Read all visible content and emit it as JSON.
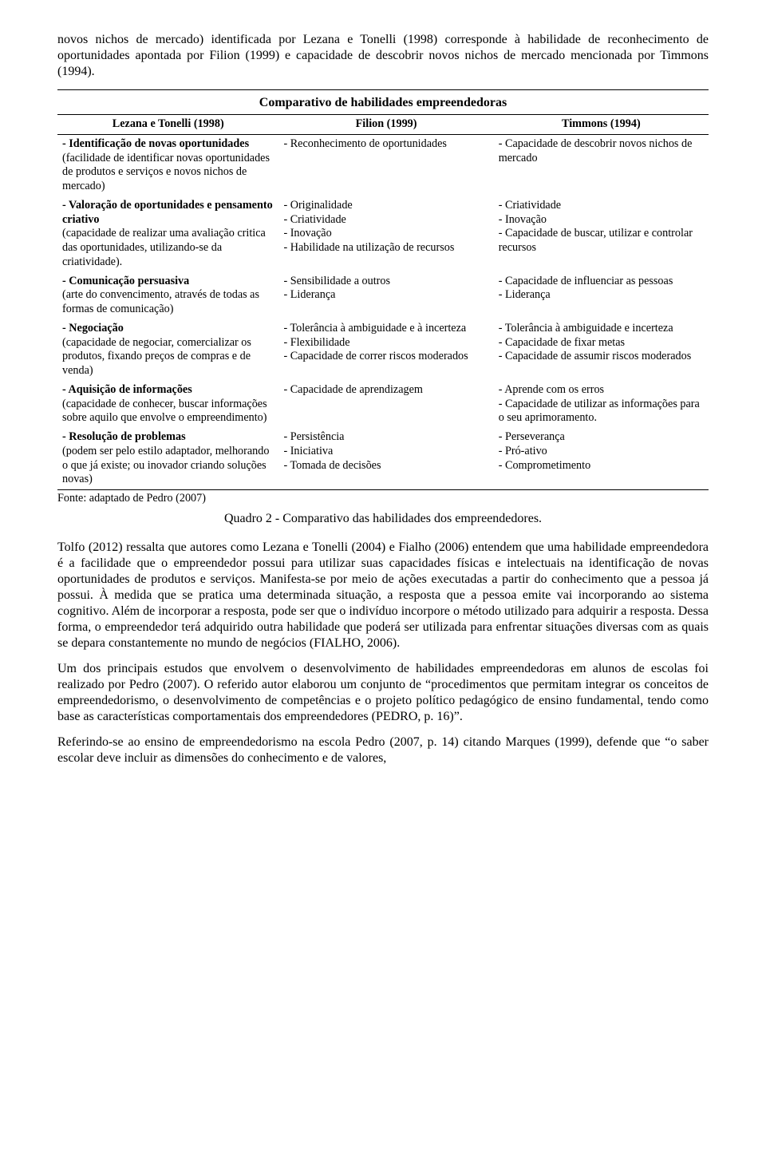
{
  "intro": "novos nichos de mercado) identificada por Lezana e Tonelli (1998) corresponde à habilidade de reconhecimento de oportunidades apontada por Filion (1999) e capacidade de descobrir novos nichos de mercado mencionada por Timmons (1994).",
  "table": {
    "title": "Comparativo de habilidades empreendedoras",
    "headers": [
      "Lezana e Tonelli (1998)",
      "Filion (1999)",
      "Timmons (1994)"
    ],
    "rows": [
      {
        "c1_bold": "- Identificação de novas oportunidades",
        "c1_rest": "(facilidade de identificar novas oportunidades de produtos e serviços e novos nichos de mercado)",
        "c2": "- Reconhecimento de oportunidades",
        "c3": "- Capacidade de descobrir novos nichos de mercado"
      },
      {
        "c1_bold": "- Valoração de oportunidades e pensamento criativo",
        "c1_rest": "(capacidade de realizar uma avaliação critica das oportunidades, utilizando-se da criatividade).",
        "c2": "- Originalidade\n- Criatividade\n- Inovação\n- Habilidade na utilização de recursos",
        "c3": "- Criatividade\n- Inovação\n- Capacidade de buscar, utilizar e controlar recursos"
      },
      {
        "c1_bold": "- Comunicação persuasiva",
        "c1_rest": "(arte do convencimento, através de todas as formas de comunicação)",
        "c2": "- Sensibilidade a outros\n- Liderança",
        "c3": "- Capacidade de influenciar as pessoas\n- Liderança"
      },
      {
        "c1_bold": "- Negociação",
        "c1_rest": "(capacidade de negociar, comercializar os produtos, fixando preços de compras e de venda)",
        "c2": "- Tolerância à ambiguidade e à incerteza\n- Flexibilidade\n- Capacidade de correr riscos moderados",
        "c3": "- Tolerância à ambiguidade e incerteza\n- Capacidade de fixar metas\n- Capacidade de assumir riscos moderados"
      },
      {
        "c1_bold": "- Aquisição de informações",
        "c1_rest": "(capacidade de conhecer, buscar informações sobre aquilo que envolve o empreendimento)",
        "c2": "- Capacidade de aprendizagem",
        "c3": "- Aprende com os erros\n- Capacidade de utilizar as informações para o seu aprimoramento."
      },
      {
        "c1_bold": "- Resolução de problemas",
        "c1_rest": "(podem ser pelo estilo adaptador, melhorando o que já existe; ou inovador criando soluções novas)",
        "c2": "- Persistência\n- Iniciativa\n- Tomada de decisões",
        "c3": "- Perseverança\n- Pró-ativo\n- Comprometimento"
      }
    ],
    "source": "Fonte: adaptado de Pedro (2007)",
    "caption": "Quadro 2 - Comparativo das habilidades dos empreendedores."
  },
  "body_paras": [
    "Tolfo (2012) ressalta que autores como Lezana e Tonelli (2004) e Fialho (2006) entendem que uma habilidade empreendedora é a facilidade que o empreendedor possui para utilizar suas capacidades físicas e intelectuais na identificação de novas oportunidades de produtos e serviços. Manifesta-se por meio de ações executadas a partir do conhecimento que a pessoa já possui. À medida que se pratica uma determinada situação, a resposta que a pessoa emite vai incorporando ao sistema cognitivo. Além de incorporar a resposta, pode ser que o indivíduo incorpore o método utilizado para adquirir a resposta. Dessa forma, o empreendedor terá adquirido outra habilidade que poderá ser utilizada para enfrentar situações diversas com as quais se depara constantemente no mundo de negócios (FIALHO, 2006).",
    "Um dos principais estudos que envolvem o desenvolvimento de habilidades empreendedoras em alunos de escolas foi realizado por Pedro (2007). O referido autor elaborou um conjunto de “procedimentos que permitam integrar os conceitos de empreendedorismo, o desenvolvimento de competências e o projeto político pedagógico de ensino fundamental, tendo como base as características comportamentais dos empreendedores (PEDRO, p. 16)”.",
    "Referindo-se ao ensino de empreendedorismo na escola Pedro (2007, p. 14) citando Marques (1999), defende que “o saber escolar deve incluir as dimensões do conhecimento e de valores,"
  ]
}
